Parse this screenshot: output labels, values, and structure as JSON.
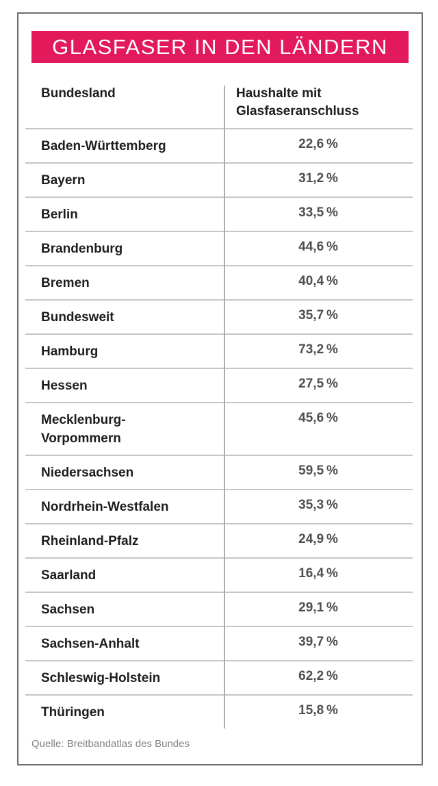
{
  "header": {
    "title": "GLASFASER IN DEN LÄNDERN"
  },
  "table": {
    "col_state": "Bundesland",
    "col_value": "Haushalte mit\nGlasfaseranschluss",
    "rows": [
      {
        "state": "Baden-Württemberg",
        "value": "22,6 %"
      },
      {
        "state": "Bayern",
        "value": "31,2 %"
      },
      {
        "state": "Berlin",
        "value": "33,5 %"
      },
      {
        "state": "Brandenburg",
        "value": "44,6 %"
      },
      {
        "state": "Bremen",
        "value": "40,4 %"
      },
      {
        "state": "Bundesweit",
        "value": "35,7 %"
      },
      {
        "state": "Hamburg",
        "value": "73,2 %"
      },
      {
        "state": "Hessen",
        "value": "27,5 %"
      },
      {
        "state": "Mecklenburg-\nVorpommern",
        "value": "45,6 %"
      },
      {
        "state": "Niedersachsen",
        "value": "59,5 %"
      },
      {
        "state": "Nordrhein-Westfalen",
        "value": "35,3 %"
      },
      {
        "state": "Rheinland-Pfalz",
        "value": "24,9 %"
      },
      {
        "state": "Saarland",
        "value": "16,4 %"
      },
      {
        "state": "Sachsen",
        "value": "29,1 %"
      },
      {
        "state": "Sachsen-Anhalt",
        "value": "39,7 %"
      },
      {
        "state": "Schleswig-Holstein",
        "value": "62,2 %"
      },
      {
        "state": "Thüringen",
        "value": "15,8 %"
      }
    ]
  },
  "source": "Quelle: Breitbandatlas des Bundes",
  "colors": {
    "accent": "#e2195b",
    "card-border": "#6d6d6d",
    "separator": "#c6c6c6",
    "divider": "#ababab",
    "label": "#1d1d1d",
    "value": "#4f4f4f",
    "source-text": "#828282"
  },
  "chart_data": {
    "type": "table",
    "title": "GLASFASER IN DEN LÄNDERN",
    "columns": [
      "Bundesland",
      "Haushalte mit Glasfaseranschluss"
    ],
    "categories": [
      "Baden-Württemberg",
      "Bayern",
      "Berlin",
      "Brandenburg",
      "Bremen",
      "Bundesweit",
      "Hamburg",
      "Hessen",
      "Mecklenburg-Vorpommern",
      "Niedersachsen",
      "Nordrhein-Westfalen",
      "Rheinland-Pfalz",
      "Saarland",
      "Sachsen",
      "Sachsen-Anhalt",
      "Schleswig-Holstein",
      "Thüringen"
    ],
    "values": [
      22.6,
      31.2,
      33.5,
      44.6,
      40.4,
      35.7,
      73.2,
      27.5,
      45.6,
      59.5,
      35.3,
      24.9,
      16.4,
      29.1,
      39.7,
      62.2,
      15.8
    ],
    "unit": "%",
    "source": "Quelle: Breitbandatlas des Bundes"
  }
}
